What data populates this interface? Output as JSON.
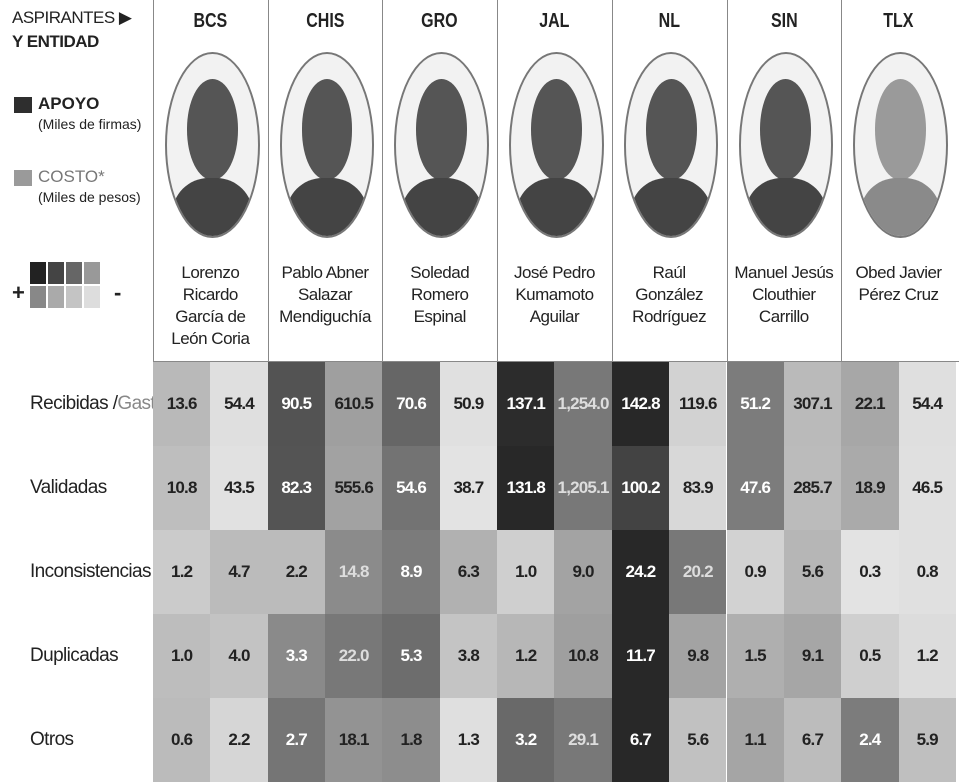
{
  "legend": {
    "title_line1": "ASPIRANTES ▶",
    "title_line2": "Y ENTIDAD",
    "apoyo": "APOYO",
    "apoyo_unit": "(Miles de firmas)",
    "costo": "COSTO*",
    "costo_unit": "(Miles de pesos)",
    "plus": "+",
    "minus": "-"
  },
  "candidates": [
    {
      "state": "BCS",
      "name": "Lorenzo Ricardo García de León Coria"
    },
    {
      "state": "CHIS",
      "name": "Pablo Abner Salazar Mendiguchía"
    },
    {
      "state": "GRO",
      "name": "Soledad Romero Espinal"
    },
    {
      "state": "JAL",
      "name": "José Pedro Kumamoto Aguilar"
    },
    {
      "state": "NL",
      "name": "Raúl González Rodríguez"
    },
    {
      "state": "SIN",
      "name": "Manuel Jesús Clouthier Carrillo"
    },
    {
      "state": "TLX",
      "name": "Obed Javier Pérez Cruz"
    }
  ],
  "table": {
    "rows": [
      {
        "label": "Recibidas /",
        "label_extra": "Gasto",
        "values": [
          "13.6",
          "54.4",
          "90.5",
          "610.5",
          "70.6",
          "50.9",
          "137.1",
          "1,254.0",
          "142.8",
          "119.6",
          "51.2",
          "307.1",
          "22.1",
          "54.4"
        ]
      },
      {
        "label": "Validadas",
        "values": [
          "10.8",
          "43.5",
          "82.3",
          "555.6",
          "54.6",
          "38.7",
          "131.8",
          "1,205.1",
          "100.2",
          "83.9",
          "47.6",
          "285.7",
          "18.9",
          "46.5"
        ]
      },
      {
        "label": "Inconsistencias",
        "values": [
          "1.2",
          "4.7",
          "2.2",
          "14.8",
          "8.9",
          "6.3",
          "1.0",
          "9.0",
          "24.2",
          "20.2",
          "0.9",
          "5.6",
          "0.3",
          "0.8"
        ]
      },
      {
        "label": "Duplicadas",
        "values": [
          "1.0",
          "4.0",
          "3.3",
          "22.0",
          "5.3",
          "3.8",
          "1.2",
          "10.8",
          "11.7",
          "9.8",
          "1.5",
          "9.1",
          "0.5",
          "1.2"
        ]
      },
      {
        "label": "Otros",
        "values": [
          "0.6",
          "2.2",
          "2.7",
          "18.1",
          "1.8",
          "1.3",
          "3.2",
          "29.1",
          "6.7",
          "5.6",
          "1.1",
          "6.7",
          "2.4",
          "5.9"
        ]
      }
    ]
  }
}
